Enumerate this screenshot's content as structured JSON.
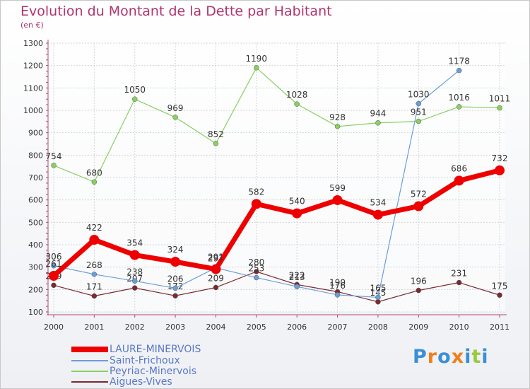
{
  "chart_data": {
    "type": "line",
    "title": "Evolution du Montant de la Dette par Habitant",
    "subtitle": "(en €)",
    "x": [
      "2000",
      "2001",
      "2002",
      "2003",
      "2004",
      "2005",
      "2006",
      "2007",
      "2008",
      "2009",
      "2010",
      "2011"
    ],
    "yticks": [
      100,
      200,
      300,
      400,
      500,
      600,
      700,
      800,
      900,
      1000,
      1100,
      1200,
      1300
    ],
    "ylim": [
      100,
      1300
    ],
    "grid": true,
    "legend_placement": "bottom-left",
    "series": [
      {
        "name": "LAURE-MINERVOIS",
        "color": "#ee0000",
        "values": [
          261,
          422,
          354,
          324,
          291,
          582,
          540,
          599,
          534,
          572,
          686,
          732
        ],
        "labels": [
          "261",
          "422",
          "354",
          "324",
          "291",
          "582",
          "540",
          "599",
          "534",
          "572",
          "686",
          "732"
        ]
      },
      {
        "name": "Saint-Frichoux",
        "color": "#6a9ed8",
        "values": [
          306,
          268,
          238,
          206,
          297,
          253,
          213,
          176,
          165,
          1030,
          1178,
          null
        ],
        "labels": [
          "306",
          "268",
          "238",
          "206",
          "297",
          "253",
          "213",
          "176",
          "165",
          "1030",
          "1178",
          ""
        ]
      },
      {
        "name": "Peyriac-Minervois",
        "color": "#88d060",
        "values": [
          754,
          680,
          1050,
          969,
          852,
          1190,
          1028,
          928,
          944,
          951,
          1016,
          1011
        ],
        "labels": [
          "754",
          "680",
          "1050",
          "969",
          "852",
          "1190",
          "1028",
          "928",
          "944",
          "951",
          "1016",
          "1011"
        ]
      },
      {
        "name": "Aigues-Vives",
        "color": "#7a2a32",
        "values": [
          219,
          171,
          207,
          172,
          209,
          280,
          222,
          190,
          145,
          196,
          231,
          175
        ],
        "labels": [
          "219",
          "171",
          "207",
          "172",
          "209",
          "280",
          "222",
          "190",
          "145",
          "196",
          "231",
          "175"
        ]
      }
    ]
  },
  "logo": {
    "text": "Proxiti",
    "colors": [
      "#3a8fd6",
      "#f07f1a",
      "#3a8fd6",
      "#f07f1a",
      "#3a8fd6",
      "#9ac93e",
      "#3a8fd6"
    ]
  }
}
